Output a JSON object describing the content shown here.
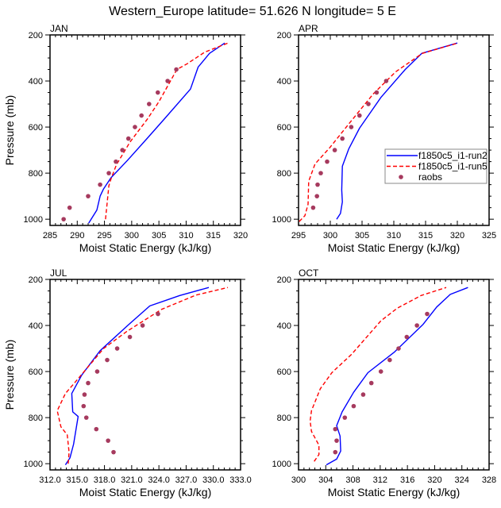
{
  "figure_title": "Western_Europe  latitude= 51.626 N longitude= 5 E",
  "colors": {
    "run2": "#0000ff",
    "run5": "#ff0000",
    "raobs": "#a63a5e",
    "frame": "#000000"
  },
  "legend": {
    "panel": "APR",
    "placement": "center-right",
    "entries": [
      {
        "label": "f1850c5_i1-run2",
        "style": "solid-line",
        "color_key": "run2"
      },
      {
        "label": "f1850c5_i1-run5",
        "style": "dashed-line",
        "color_key": "run5"
      },
      {
        "label": "raobs",
        "style": "marker",
        "color_key": "raobs"
      }
    ]
  },
  "chart_data": [
    {
      "type": "line",
      "title": "JAN",
      "xlabel": "Moist Static Energy (kJ/kg)",
      "ylabel": "Pressure (mb)",
      "xlim": [
        285,
        320
      ],
      "ylim": [
        1027,
        200
      ],
      "y_inverted": true,
      "xticks": [
        285,
        290,
        295,
        300,
        305,
        310,
        315,
        320
      ],
      "xtick_labels": [
        "285",
        "290",
        "295",
        "300",
        "305",
        "310",
        "315",
        "320"
      ],
      "yticks": [
        200,
        400,
        600,
        800,
        1000
      ],
      "ytick_labels": [
        "200",
        "400",
        "600",
        "800",
        "1000"
      ],
      "series": [
        {
          "name": "f1850c5_i1-run2",
          "kind": "solid",
          "points": [
            [
              292.1,
              1017
            ],
            [
              293.6,
              960
            ],
            [
              294.2,
              900
            ],
            [
              294.8,
              870
            ],
            [
              296.2,
              820
            ],
            [
              299.2,
              745
            ],
            [
              302.8,
              650
            ],
            [
              306.0,
              565
            ],
            [
              310.8,
              435
            ],
            [
              312.2,
              340
            ],
            [
              314.3,
              280
            ],
            [
              317.1,
              235
            ]
          ]
        },
        {
          "name": "f1850c5_i1-run5",
          "kind": "dashed",
          "points": [
            [
              295.2,
              1000
            ],
            [
              295.8,
              855
            ],
            [
              296.2,
              825
            ],
            [
              297.2,
              763
            ],
            [
              299.7,
              665
            ],
            [
              302.9,
              565
            ],
            [
              305.0,
              490
            ],
            [
              308.3,
              350
            ],
            [
              310.2,
              325
            ],
            [
              313.4,
              275
            ],
            [
              317.7,
              235
            ]
          ]
        },
        {
          "name": "raobs",
          "kind": "marker",
          "points": [
            [
              287.5,
              1000
            ],
            [
              288.6,
              950
            ],
            [
              292.0,
              900
            ],
            [
              294.2,
              850
            ],
            [
              295.8,
              800
            ],
            [
              297.1,
              750
            ],
            [
              298.3,
              700
            ],
            [
              299.4,
              650
            ],
            [
              300.6,
              600
            ],
            [
              301.8,
              550
            ],
            [
              303.2,
              500
            ],
            [
              304.8,
              450
            ],
            [
              306.6,
              400
            ],
            [
              308.2,
              350
            ]
          ]
        }
      ]
    },
    {
      "type": "line",
      "title": "APR",
      "xlabel": "Moist Static Energy (kJ/kg)",
      "ylabel": "",
      "xlim": [
        295,
        325
      ],
      "ylim": [
        1027,
        200
      ],
      "y_inverted": true,
      "xticks": [
        295,
        300,
        305,
        310,
        315,
        320,
        325
      ],
      "xtick_labels": [
        "295",
        "300",
        "305",
        "310",
        "315",
        "320",
        "325"
      ],
      "yticks": [
        200,
        400,
        600,
        800,
        1000
      ],
      "ytick_labels": [
        "200",
        "400",
        "600",
        "800",
        "1000"
      ],
      "series": [
        {
          "name": "f1850c5_i1-run2",
          "kind": "solid",
          "points": [
            [
              301.0,
              1000
            ],
            [
              301.6,
              975
            ],
            [
              301.9,
              925
            ],
            [
              301.8,
              873
            ],
            [
              301.9,
              770
            ],
            [
              302.9,
              695
            ],
            [
              304.6,
              605
            ],
            [
              308.0,
              470
            ],
            [
              311.8,
              350
            ],
            [
              314.4,
              280
            ],
            [
              320.0,
              235
            ]
          ]
        },
        {
          "name": "f1850c5_i1-run5",
          "kind": "dashed",
          "points": [
            [
              295.1,
              1010
            ],
            [
              296.0,
              985
            ],
            [
              296.5,
              935
            ],
            [
              296.6,
              835
            ],
            [
              297.6,
              760
            ],
            [
              299.9,
              690
            ],
            [
              303.1,
              580
            ],
            [
              306.8,
              455
            ],
            [
              310.3,
              360
            ],
            [
              314.5,
              280
            ],
            [
              320.1,
              235
            ]
          ]
        },
        {
          "name": "raobs",
          "kind": "marker",
          "points": [
            [
              297.3,
              950
            ],
            [
              297.9,
              900
            ],
            [
              298.0,
              850
            ],
            [
              298.5,
              800
            ],
            [
              299.5,
              750
            ],
            [
              300.7,
              700
            ],
            [
              301.9,
              650
            ],
            [
              303.3,
              600
            ],
            [
              304.6,
              550
            ],
            [
              306.0,
              500
            ],
            [
              307.3,
              450
            ],
            [
              308.8,
              400
            ]
          ]
        }
      ]
    },
    {
      "type": "line",
      "title": "JUL",
      "xlabel": "Moist Static Energy (kJ/kg)",
      "ylabel": "Pressure (mb)",
      "xlim": [
        312,
        333
      ],
      "ylim": [
        1027,
        200
      ],
      "y_inverted": true,
      "xticks": [
        312,
        315,
        318,
        321,
        324,
        327,
        330,
        333
      ],
      "xtick_labels": [
        "312.0",
        "315.0",
        "318.0",
        "321.0",
        "324.0",
        "327.0",
        "330.0",
        "333.0"
      ],
      "yticks": [
        200,
        400,
        600,
        800,
        1000
      ],
      "ytick_labels": [
        "200",
        "400",
        "600",
        "800",
        "1000"
      ],
      "series": [
        {
          "name": "f1850c5_i1-run2",
          "kind": "solid",
          "points": [
            [
              313.7,
              1005
            ],
            [
              314.2,
              975
            ],
            [
              314.6,
              915
            ],
            [
              315.1,
              795
            ],
            [
              314.5,
              775
            ],
            [
              314.4,
              695
            ],
            [
              315.5,
              615
            ],
            [
              317.5,
              510
            ],
            [
              320.7,
              395
            ],
            [
              323.0,
              315
            ],
            [
              326.3,
              270
            ],
            [
              329.5,
              235
            ]
          ]
        },
        {
          "name": "f1850c5_i1-run5",
          "kind": "dashed",
          "points": [
            [
              314.0,
              1000
            ],
            [
              314.1,
              950
            ],
            [
              313.9,
              875
            ],
            [
              313.2,
              840
            ],
            [
              312.8,
              770
            ],
            [
              313.7,
              695
            ],
            [
              314.8,
              645
            ],
            [
              317.9,
              500
            ],
            [
              320.5,
              425
            ],
            [
              324.3,
              330
            ],
            [
              328.1,
              268
            ],
            [
              331.6,
              235
            ]
          ]
        },
        {
          "name": "raobs",
          "kind": "marker",
          "points": [
            [
              319.0,
              950
            ],
            [
              318.4,
              900
            ],
            [
              317.1,
              850
            ],
            [
              316.0,
              800
            ],
            [
              315.7,
              750
            ],
            [
              315.8,
              700
            ],
            [
              316.2,
              650
            ],
            [
              317.2,
              600
            ],
            [
              318.3,
              550
            ],
            [
              319.4,
              500
            ],
            [
              320.8,
              450
            ],
            [
              322.2,
              400
            ],
            [
              323.9,
              350
            ]
          ]
        }
      ]
    },
    {
      "type": "line",
      "title": "OCT",
      "xlabel": "Moist Static Energy (kJ/kg)",
      "ylabel": "",
      "xlim": [
        300,
        328
      ],
      "ylim": [
        1027,
        200
      ],
      "y_inverted": true,
      "xticks": [
        300,
        304,
        308,
        312,
        316,
        320,
        324,
        328
      ],
      "xtick_labels": [
        "300",
        "304",
        "308",
        "312",
        "316",
        "320",
        "324",
        "328"
      ],
      "yticks": [
        200,
        400,
        600,
        800,
        1000
      ],
      "ytick_labels": [
        "200",
        "400",
        "600",
        "800",
        "1000"
      ],
      "series": [
        {
          "name": "f1850c5_i1-run2",
          "kind": "solid",
          "points": [
            [
              304.1,
              1005
            ],
            [
              305.6,
              980
            ],
            [
              306.2,
              945
            ],
            [
              306.1,
              880
            ],
            [
              305.6,
              835
            ],
            [
              306.4,
              775
            ],
            [
              308.1,
              690
            ],
            [
              310.2,
              605
            ],
            [
              314.1,
              515
            ],
            [
              318.3,
              395
            ],
            [
              320.3,
              320
            ],
            [
              322.3,
              265
            ],
            [
              324.9,
              235
            ]
          ]
        },
        {
          "name": "f1850c5_i1-run5",
          "kind": "dashed",
          "points": [
            [
              302.3,
              990
            ],
            [
              303.0,
              960
            ],
            [
              303.0,
              920
            ],
            [
              301.9,
              860
            ],
            [
              301.7,
              815
            ],
            [
              301.9,
              770
            ],
            [
              303.2,
              675
            ],
            [
              304.9,
              605
            ],
            [
              307.8,
              525
            ],
            [
              312.1,
              380
            ],
            [
              314.5,
              325
            ],
            [
              318.0,
              270
            ],
            [
              321.7,
              235
            ]
          ]
        },
        {
          "name": "raobs",
          "kind": "marker",
          "points": [
            [
              305.4,
              950
            ],
            [
              305.6,
              900
            ],
            [
              305.4,
              850
            ],
            [
              306.8,
              800
            ],
            [
              308.1,
              750
            ],
            [
              309.5,
              700
            ],
            [
              310.7,
              650
            ],
            [
              312.1,
              600
            ],
            [
              313.4,
              550
            ],
            [
              314.7,
              500
            ],
            [
              315.9,
              450
            ],
            [
              317.4,
              400
            ],
            [
              318.9,
              350
            ]
          ]
        }
      ]
    }
  ]
}
